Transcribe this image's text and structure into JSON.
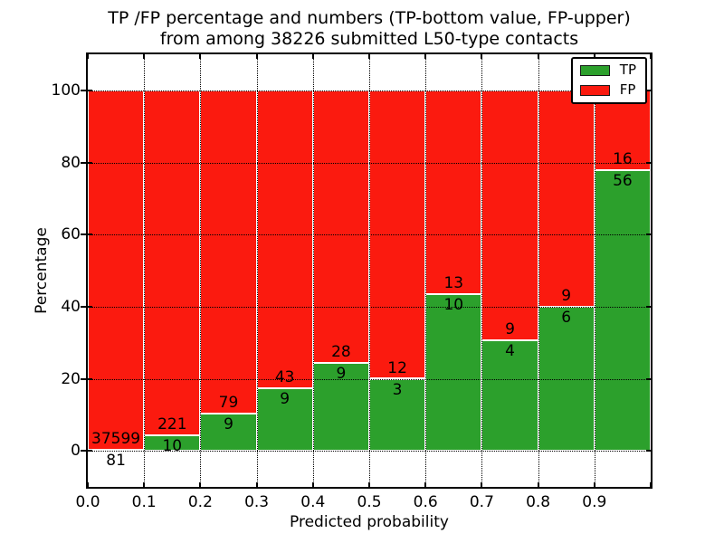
{
  "figure": {
    "title": {
      "line1": "TP /FP percentage and numbers (TP-bottom value, FP-upper)",
      "line2": "from among 38226 submitted L50-type contacts"
    }
  },
  "x_axis": {
    "label": "Predicted probability",
    "tick_labels": [
      "0.0",
      "0.1",
      "0.2",
      "0.3",
      "0.4",
      "0.5",
      "0.6",
      "0.7",
      "0.8",
      "0.9"
    ]
  },
  "y_axis": {
    "label": "Percentage",
    "tick_values": [
      0,
      20,
      40,
      60,
      80,
      100
    ]
  },
  "legend": {
    "items": [
      {
        "label": "TP",
        "color": "#2ca02c"
      },
      {
        "label": "FP",
        "color": "#fb1a0f"
      }
    ]
  },
  "chart_data": {
    "type": "bar",
    "stacked": true,
    "orientation": "vertical",
    "title": "TP /FP percentage and numbers (TP-bottom value, FP-upper) from among 38226 submitted L50-type contacts",
    "xlabel": "Predicted probability",
    "ylabel": "Percentage",
    "xlim": [
      0.0,
      1.0
    ],
    "ylim": [
      -10,
      110
    ],
    "x_tick_labels": [
      "0.0",
      "0.1",
      "0.2",
      "0.3",
      "0.4",
      "0.5",
      "0.6",
      "0.7",
      "0.8",
      "0.9"
    ],
    "y_tick_values": [
      0,
      20,
      40,
      60,
      80,
      100
    ],
    "grid": "dotted black, both axes, drawn over bars",
    "legend_position": "upper right",
    "bar_edge_color": "#ffffff",
    "bin_width": 0.1,
    "categories": [
      "0.0-0.1",
      "0.1-0.2",
      "0.2-0.3",
      "0.3-0.4",
      "0.4-0.5",
      "0.5-0.6",
      "0.6-0.7",
      "0.7-0.8",
      "0.8-0.9",
      "0.9-1.0"
    ],
    "series": [
      {
        "name": "TP",
        "color": "#2ca02c",
        "counts": [
          81,
          10,
          9,
          9,
          9,
          3,
          10,
          4,
          6,
          56
        ],
        "percent": [
          0.21,
          4.33,
          10.23,
          17.31,
          24.32,
          20.0,
          43.48,
          30.77,
          40.0,
          77.78
        ]
      },
      {
        "name": "FP",
        "color": "#fb1a0f",
        "counts": [
          37599,
          221,
          79,
          43,
          28,
          12,
          13,
          9,
          9,
          16
        ],
        "percent": [
          99.79,
          95.67,
          89.77,
          82.69,
          75.68,
          80.0,
          56.52,
          69.23,
          60.0,
          22.22
        ]
      }
    ],
    "annotation_rule": "FP count shown just above TP/FP boundary, TP count just below it",
    "total_contacts": 38226
  }
}
